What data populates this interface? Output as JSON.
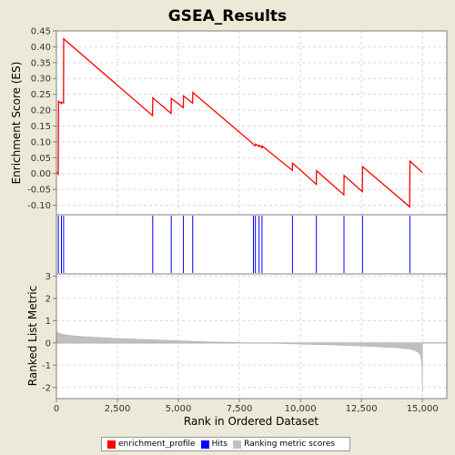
{
  "chart_data": {
    "title": "GSEA_Results",
    "xlabel": "Rank in Ordered Dataset",
    "xlim": [
      0,
      16000
    ],
    "x_ticks": [
      "0",
      "2,500",
      "5,000",
      "7,500",
      "10,000",
      "12,500",
      "15,000"
    ],
    "x_tick_values": [
      0,
      2500,
      5000,
      7500,
      10000,
      12500,
      15000
    ],
    "panels": [
      {
        "name": "enrichment",
        "type": "line",
        "ylabel": "Enrichment Score (ES)",
        "ylim": [
          -0.13,
          0.45
        ],
        "y_ticks": [
          "0.45",
          "0.40",
          "0.35",
          "0.30",
          "0.25",
          "0.20",
          "0.15",
          "0.10",
          "0.05",
          "0.00",
          "-0.05",
          "-0.10"
        ],
        "y_tick_values": [
          0.45,
          0.4,
          0.35,
          0.3,
          0.25,
          0.2,
          0.15,
          0.1,
          0.05,
          0.0,
          -0.05,
          -0.1
        ],
        "grid": true,
        "series": [
          {
            "name": "enrichment_profile",
            "color": "#FF0000",
            "x": [
              0,
              75,
              85,
              200,
              210,
              290,
              300,
              3940,
              3950,
              4700,
              4710,
              5200,
              5210,
              5580,
              5590,
              8070,
              8080,
              8150,
              8160,
              8300,
              8310,
              8420,
              8430,
              9670,
              9680,
              10650,
              10660,
              11780,
              11790,
              12540,
              12550,
              14480,
              14490,
              15000
            ],
            "y": [
              0.005,
              -0.002,
              0.228,
              0.221,
              0.225,
              0.223,
              0.425,
              0.183,
              0.239,
              0.19,
              0.237,
              0.208,
              0.245,
              0.222,
              0.256,
              0.093,
              0.09,
              0.088,
              0.093,
              0.086,
              0.089,
              0.082,
              0.087,
              0.01,
              0.033,
              -0.034,
              0.009,
              -0.067,
              -0.006,
              -0.057,
              0.022,
              -0.105,
              0.039,
              0.003
            ]
          }
        ]
      },
      {
        "name": "hits",
        "type": "ticks",
        "ylim": [
          0,
          1
        ],
        "series": [
          {
            "name": "Hits",
            "color": "#0000FF",
            "x": [
              80,
              205,
              295,
              3945,
              4705,
              5205,
              5585,
              8075,
              8155,
              8305,
              8425,
              9675,
              10655,
              11785,
              12545,
              14485
            ]
          }
        ]
      },
      {
        "name": "ranking",
        "type": "area",
        "ylabel": "Ranked List Metric",
        "ylim": [
          -2.5,
          3.1
        ],
        "y_ticks": [
          "3",
          "2",
          "1",
          "0",
          "-1",
          "-2"
        ],
        "y_tick_values": [
          3,
          2,
          1,
          0,
          -1,
          -2
        ],
        "grid": true,
        "series": [
          {
            "name": "Ranking metric scores",
            "color": "#C0C0C0",
            "x": [
              0,
              30,
              100,
              300,
              600,
              1000,
              1500,
              2000,
              2500,
              3000,
              3500,
              4000,
              4500,
              5000,
              5500,
              6000,
              6500,
              7000,
              7500,
              8000,
              8500,
              9000,
              9500,
              10000,
              10500,
              11000,
              11500,
              12000,
              12500,
              13000,
              13500,
              14000,
              14500,
              14700,
              14850,
              14930,
              14970,
              14990,
              15000
            ],
            "y": [
              0.55,
              0.48,
              0.44,
              0.38,
              0.33,
              0.29,
              0.26,
              0.23,
              0.2,
              0.18,
              0.16,
              0.14,
              0.12,
              0.1,
              0.08,
              0.06,
              0.04,
              0.03,
              0.01,
              0.0,
              -0.01,
              -0.02,
              -0.04,
              -0.05,
              -0.07,
              -0.08,
              -0.1,
              -0.12,
              -0.14,
              -0.16,
              -0.19,
              -0.22,
              -0.28,
              -0.34,
              -0.45,
              -0.6,
              -0.9,
              -1.5,
              -2.2
            ]
          }
        ]
      }
    ],
    "legend": {
      "placement": "bottom",
      "entries": [
        {
          "label": "enrichment_profile",
          "color": "#FF0000"
        },
        {
          "label": "Hits",
          "color": "#0000FF"
        },
        {
          "label": "Ranking metric scores",
          "color": "#C0C0C0"
        }
      ]
    }
  }
}
